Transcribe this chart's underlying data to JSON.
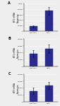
{
  "panels": [
    {
      "label": "A",
      "ylabel": "TET1 mRNA\nExpression",
      "categories": [
        "non-CSCs",
        "CSCs"
      ],
      "values": [
        0.00018,
        0.00075
      ],
      "errors": [
        4e-05,
        0.00014
      ],
      "ylim": [
        0,
        0.001
      ],
      "yticks": [
        0,
        0.0002,
        0.0004,
        0.0006,
        0.0008,
        0.001
      ],
      "ytick_labels": [
        "0",
        "0.0002",
        "0.0004",
        "0.0006",
        "0.0008",
        "0.001"
      ]
    },
    {
      "label": "B",
      "ylabel": "TET2 mRNA\nExpression",
      "categories": [
        "non-CSCs",
        "CSCs"
      ],
      "values": [
        0.00038,
        0.00052
      ],
      "errors": [
        0.0001,
        0.00013
      ],
      "ylim": [
        0,
        0.0008
      ],
      "yticks": [
        0,
        0.0002,
        0.0004,
        0.0006,
        0.0008
      ],
      "ytick_labels": [
        "0",
        "0.0002",
        "0.0004",
        "0.0006",
        "0.0008"
      ]
    },
    {
      "label": "C",
      "ylabel": "TET3 mRNA\nExpression",
      "categories": [
        "non-CSCs",
        "CSCs"
      ],
      "values": [
        0.00032,
        0.00048
      ],
      "errors": [
        9e-05,
        0.00011
      ],
      "ylim": [
        0,
        0.0008
      ],
      "yticks": [
        0,
        0.0002,
        0.0004,
        0.0006,
        0.0008
      ],
      "ytick_labels": [
        "0",
        "0.0002",
        "0.0004",
        "0.0006",
        "0.0008"
      ]
    }
  ],
  "bar_color": "#2b2b8c",
  "bar_width": 0.5,
  "background_color": "#eeeeee",
  "grid_color": "#ffffff",
  "figsize": [
    0.85,
    1.5
  ],
  "dpi": 100
}
